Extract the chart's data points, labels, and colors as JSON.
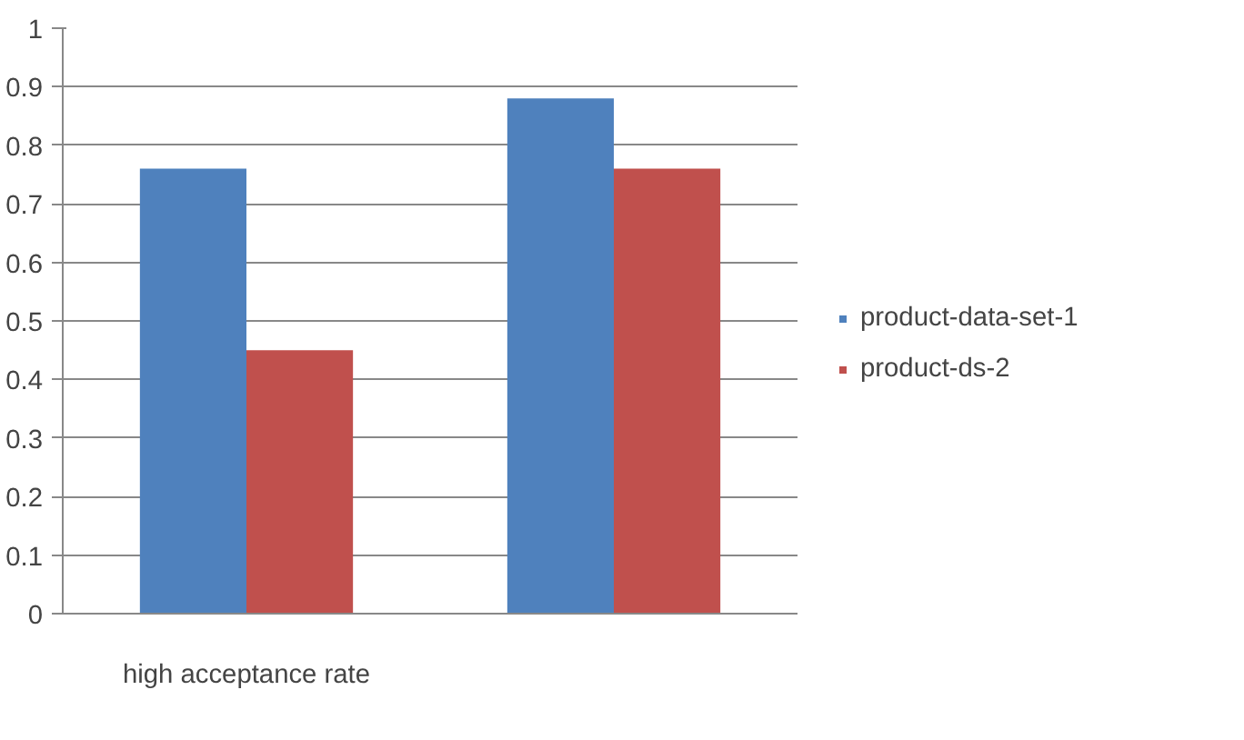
{
  "chart_data": {
    "type": "bar",
    "categories": [
      "high acceptance rate",
      null
    ],
    "series": [
      {
        "name": "product-data-set-1",
        "color": "#4f81bd",
        "values": [
          0.76,
          0.88
        ]
      },
      {
        "name": "product-ds-2",
        "color": "#c0504d",
        "values": [
          0.45,
          0.76
        ]
      }
    ],
    "ylim": [
      0,
      1
    ],
    "yticks": [
      0,
      0.1,
      0.2,
      0.3,
      0.4,
      0.5,
      0.6,
      0.7,
      0.8,
      0.9,
      1
    ],
    "grid": "y",
    "legend": "right"
  }
}
